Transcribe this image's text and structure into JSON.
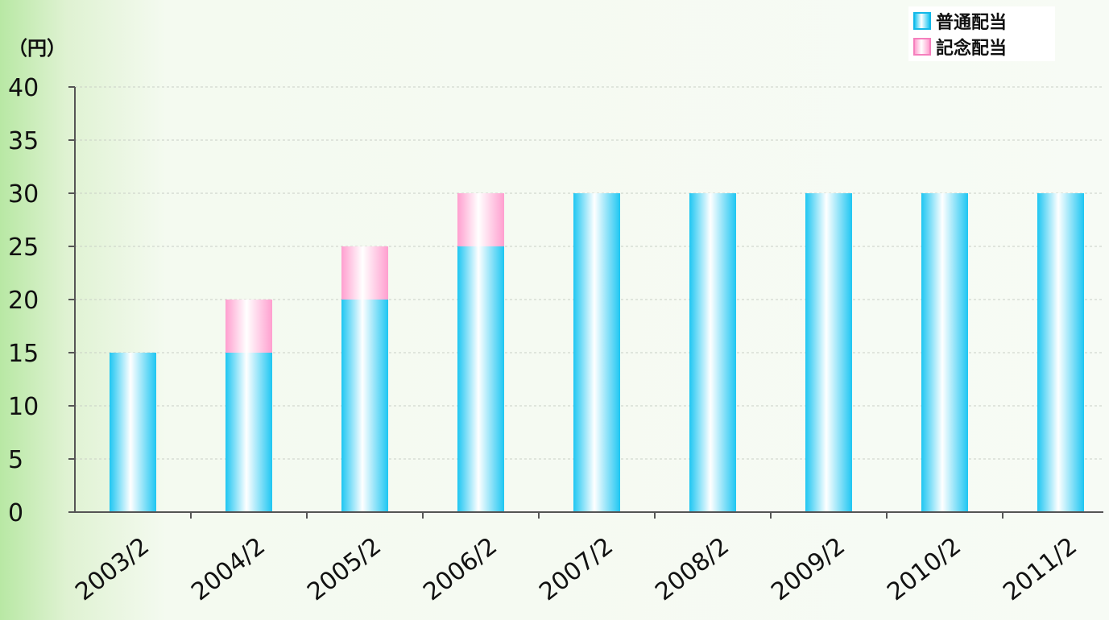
{
  "chart_data": {
    "type": "bar",
    "stacked": true,
    "ylabel": "（円）",
    "ylim": [
      0,
      40
    ],
    "yticks": [
      "0",
      "5",
      "10",
      "15",
      "20",
      "25",
      "30",
      "35",
      "40"
    ],
    "categories": [
      "2003/2",
      "2004/2",
      "2005/2",
      "2006/2",
      "2007/2",
      "2008/2",
      "2009/2",
      "2010/2",
      "2011/2"
    ],
    "series": [
      {
        "name": "普通配当",
        "values": [
          15,
          15,
          20,
          25,
          30,
          30,
          30,
          30,
          30
        ]
      },
      {
        "name": "記念配当",
        "values": [
          0,
          5,
          5,
          5,
          0,
          0,
          0,
          0,
          0
        ]
      }
    ],
    "grid": true,
    "legend_position": "top-right"
  },
  "colors": {
    "normal_edge": "#1ec6f2",
    "commemorative_edge": "#ff9fcf",
    "axis": "#555555",
    "grid": "#c9cfc6"
  }
}
